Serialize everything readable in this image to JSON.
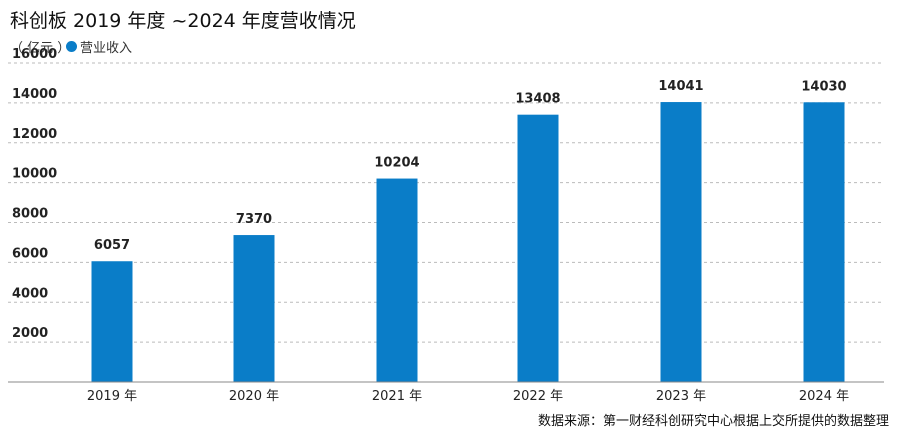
{
  "header": {
    "title": "科创板 2019 年度 ~2024 年度营收情况",
    "unit": "（ 亿元 ）"
  },
  "legend": {
    "label": "营业收入"
  },
  "footer": {
    "source": "数据来源：第一财经科创研究中心根据上交所提供的数据整理"
  },
  "colors": {
    "bar": "#0a7dc8",
    "grid": "#bbbbbb",
    "axis": "#888888"
  },
  "chart_data": {
    "type": "bar",
    "title": "科创板 2019 年度 ~2024 年度营收情况",
    "ylabel": "（ 亿元 ）",
    "categories": [
      "2019 年",
      "2020 年",
      "2021 年",
      "2022 年",
      "2023 年",
      "2024 年"
    ],
    "series": [
      {
        "name": "营业收入",
        "values": [
          6057,
          7370,
          10204,
          13408,
          14041,
          14030
        ]
      }
    ],
    "yticks": [
      2000,
      4000,
      6000,
      8000,
      10000,
      12000,
      14000,
      16000
    ],
    "ylim": [
      0,
      16000
    ],
    "grid": true,
    "legend_position": "top-left"
  }
}
